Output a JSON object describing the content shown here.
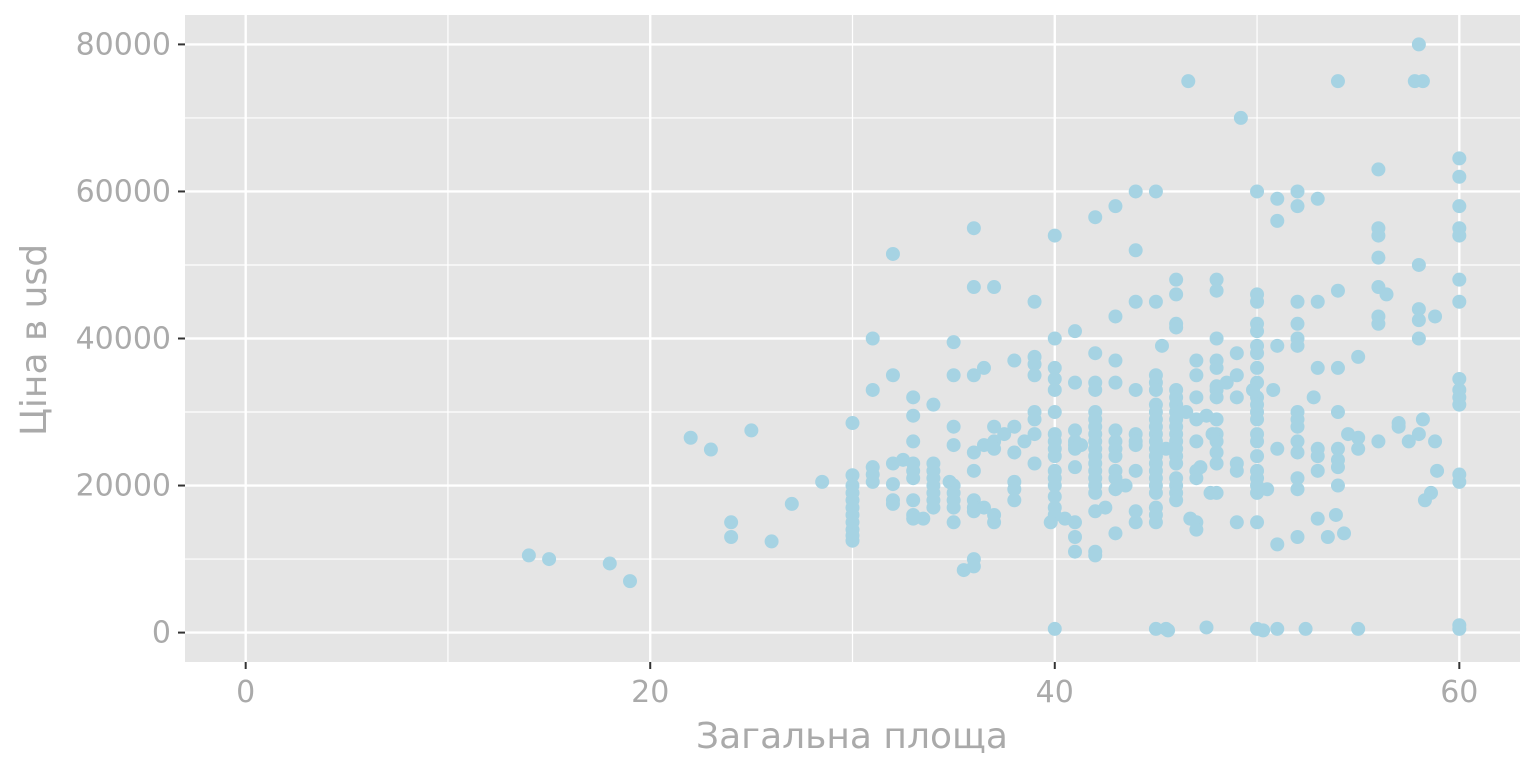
{
  "chart_data": {
    "type": "scatter",
    "title": "",
    "xlabel": "Загальна площа",
    "ylabel": "Ціна в usd",
    "xlim": [
      -3,
      63
    ],
    "ylim": [
      -4000,
      84000
    ],
    "x_ticks": [
      0,
      20,
      40,
      60
    ],
    "x_tick_labels": [
      "0",
      "20",
      "40",
      "60"
    ],
    "y_ticks": [
      0,
      20000,
      40000,
      60000,
      80000
    ],
    "y_tick_labels": [
      "0",
      "20000",
      "40000",
      "60000",
      "80000"
    ],
    "grid": true,
    "legend": "none",
    "colors": {
      "panel": "#e5e5e5",
      "grid": "#ffffff",
      "point": "#a6d3e3",
      "text": "#aaaaaa"
    },
    "points": [
      [
        14,
        10500
      ],
      [
        15,
        10000
      ],
      [
        18,
        9400
      ],
      [
        19,
        7000
      ],
      [
        22,
        26500
      ],
      [
        23,
        24900
      ],
      [
        24,
        15000
      ],
      [
        24,
        13000
      ],
      [
        25,
        27500
      ],
      [
        26,
        12400
      ],
      [
        27,
        17500
      ],
      [
        28.5,
        20500
      ],
      [
        30,
        28500
      ],
      [
        30,
        21400
      ],
      [
        30,
        20000
      ],
      [
        30,
        19000
      ],
      [
        30,
        18000
      ],
      [
        30,
        17000
      ],
      [
        30,
        16000
      ],
      [
        30,
        15000
      ],
      [
        30,
        14000
      ],
      [
        30,
        13200
      ],
      [
        30,
        12500
      ],
      [
        31,
        40000
      ],
      [
        31,
        33000
      ],
      [
        31,
        22500
      ],
      [
        31,
        21500
      ],
      [
        31,
        20500
      ],
      [
        32,
        51500
      ],
      [
        32,
        35000
      ],
      [
        32,
        23000
      ],
      [
        32,
        20200
      ],
      [
        32,
        18000
      ],
      [
        32,
        17500
      ],
      [
        32.5,
        23500
      ],
      [
        33,
        32000
      ],
      [
        33,
        29500
      ],
      [
        33,
        26000
      ],
      [
        33,
        23000
      ],
      [
        33,
        22000
      ],
      [
        33,
        21000
      ],
      [
        33,
        18000
      ],
      [
        33,
        16000
      ],
      [
        33,
        15500
      ],
      [
        33.5,
        15500
      ],
      [
        34,
        31000
      ],
      [
        34,
        23000
      ],
      [
        34,
        22000
      ],
      [
        34,
        21000
      ],
      [
        34,
        20000
      ],
      [
        34,
        19000
      ],
      [
        34,
        18000
      ],
      [
        34,
        17000
      ],
      [
        34.8,
        20500
      ],
      [
        35,
        39500
      ],
      [
        35,
        35000
      ],
      [
        35,
        28000
      ],
      [
        35,
        25500
      ],
      [
        35,
        20000
      ],
      [
        35,
        19000
      ],
      [
        35,
        18000
      ],
      [
        35,
        17000
      ],
      [
        35,
        15000
      ],
      [
        35.5,
        8500
      ],
      [
        36,
        55000
      ],
      [
        36,
        47000
      ],
      [
        36,
        35000
      ],
      [
        36,
        24500
      ],
      [
        36,
        22000
      ],
      [
        36,
        18000
      ],
      [
        36,
        17000
      ],
      [
        36,
        16500
      ],
      [
        36,
        10000
      ],
      [
        36,
        9000
      ],
      [
        36.5,
        36000
      ],
      [
        36.5,
        25500
      ],
      [
        36.5,
        17000
      ],
      [
        37,
        47000
      ],
      [
        37,
        28000
      ],
      [
        37,
        26000
      ],
      [
        37,
        25000
      ],
      [
        37,
        16000
      ],
      [
        37,
        15000
      ],
      [
        37.5,
        27000
      ],
      [
        38,
        37000
      ],
      [
        38,
        28000
      ],
      [
        38,
        24500
      ],
      [
        38,
        20500
      ],
      [
        38,
        19500
      ],
      [
        38,
        18000
      ],
      [
        38.5,
        26000
      ],
      [
        39,
        45000
      ],
      [
        39,
        37500
      ],
      [
        39,
        36500
      ],
      [
        39,
        35000
      ],
      [
        39,
        30000
      ],
      [
        39,
        29000
      ],
      [
        39,
        27000
      ],
      [
        39,
        23000
      ],
      [
        40,
        54000
      ],
      [
        40,
        40000
      ],
      [
        40,
        36000
      ],
      [
        40,
        34500
      ],
      [
        40,
        33000
      ],
      [
        40,
        30000
      ],
      [
        40,
        27000
      ],
      [
        40,
        26000
      ],
      [
        40,
        25000
      ],
      [
        40,
        24000
      ],
      [
        40,
        22000
      ],
      [
        40,
        21000
      ],
      [
        40,
        20000
      ],
      [
        40,
        18500
      ],
      [
        40,
        17000
      ],
      [
        40,
        16000
      ],
      [
        40,
        500
      ],
      [
        39.8,
        15000
      ],
      [
        40.5,
        15500
      ],
      [
        41,
        41000
      ],
      [
        41,
        34000
      ],
      [
        41,
        27500
      ],
      [
        41,
        26000
      ],
      [
        41,
        25500
      ],
      [
        41,
        25000
      ],
      [
        41,
        22500
      ],
      [
        41,
        15000
      ],
      [
        41,
        13000
      ],
      [
        41,
        11000
      ],
      [
        41.3,
        25500
      ],
      [
        42,
        56500
      ],
      [
        42,
        38000
      ],
      [
        42,
        34000
      ],
      [
        42,
        33000
      ],
      [
        42,
        30000
      ],
      [
        42,
        29000
      ],
      [
        42,
        28000
      ],
      [
        42,
        27000
      ],
      [
        42,
        26000
      ],
      [
        42,
        25000
      ],
      [
        42,
        24000
      ],
      [
        42,
        23000
      ],
      [
        42,
        22000
      ],
      [
        42,
        21000
      ],
      [
        42,
        20000
      ],
      [
        42,
        19000
      ],
      [
        42,
        16500
      ],
      [
        42,
        11000
      ],
      [
        42,
        10500
      ],
      [
        42.5,
        17000
      ],
      [
        43,
        58000
      ],
      [
        43,
        43000
      ],
      [
        43,
        37000
      ],
      [
        43,
        34000
      ],
      [
        43,
        27500
      ],
      [
        43,
        26000
      ],
      [
        43,
        25000
      ],
      [
        43,
        24000
      ],
      [
        43,
        22000
      ],
      [
        43,
        21000
      ],
      [
        43,
        19500
      ],
      [
        43,
        13500
      ],
      [
        43.5,
        20000
      ],
      [
        44,
        60000
      ],
      [
        44,
        52000
      ],
      [
        44,
        45000
      ],
      [
        44,
        33000
      ],
      [
        44,
        27000
      ],
      [
        44,
        26000
      ],
      [
        44,
        25500
      ],
      [
        44,
        22000
      ],
      [
        44,
        16500
      ],
      [
        44,
        15000
      ],
      [
        45,
        60000
      ],
      [
        45,
        45000
      ],
      [
        45,
        35000
      ],
      [
        45,
        34000
      ],
      [
        45,
        33000
      ],
      [
        45,
        31000
      ],
      [
        45,
        30000
      ],
      [
        45,
        29000
      ],
      [
        45,
        28000
      ],
      [
        45,
        27000
      ],
      [
        45,
        26000
      ],
      [
        45,
        25000
      ],
      [
        45,
        24000
      ],
      [
        45,
        23000
      ],
      [
        45,
        22000
      ],
      [
        45,
        21000
      ],
      [
        45,
        20000
      ],
      [
        45,
        19000
      ],
      [
        45,
        17000
      ],
      [
        45,
        16000
      ],
      [
        45,
        15000
      ],
      [
        45,
        500
      ],
      [
        45.3,
        39000
      ],
      [
        45.5,
        25000
      ],
      [
        45.5,
        500
      ],
      [
        45.6,
        300
      ],
      [
        46,
        48000
      ],
      [
        46,
        46000
      ],
      [
        46,
        42000
      ],
      [
        46,
        41500
      ],
      [
        46,
        33000
      ],
      [
        46,
        32000
      ],
      [
        46,
        31000
      ],
      [
        46,
        30000
      ],
      [
        46,
        29000
      ],
      [
        46,
        28000
      ],
      [
        46,
        27000
      ],
      [
        46,
        26000
      ],
      [
        46,
        25000
      ],
      [
        46,
        24000
      ],
      [
        46,
        23000
      ],
      [
        46,
        21000
      ],
      [
        46,
        20000
      ],
      [
        46,
        19000
      ],
      [
        46,
        18000
      ],
      [
        46.5,
        30000
      ],
      [
        46.6,
        75000
      ],
      [
        46.7,
        15500
      ],
      [
        47,
        37000
      ],
      [
        47,
        35000
      ],
      [
        47,
        32000
      ],
      [
        47,
        29000
      ],
      [
        47,
        26000
      ],
      [
        47,
        22000
      ],
      [
        47,
        21000
      ],
      [
        47,
        15000
      ],
      [
        47,
        14000
      ],
      [
        47.2,
        22500
      ],
      [
        47.5,
        29500
      ],
      [
        47.5,
        700
      ],
      [
        47.7,
        19000
      ],
      [
        48,
        48000
      ],
      [
        48,
        46500
      ],
      [
        48,
        40000
      ],
      [
        48,
        37000
      ],
      [
        48,
        36000
      ],
      [
        48,
        33500
      ],
      [
        48,
        33000
      ],
      [
        48,
        32000
      ],
      [
        48,
        29000
      ],
      [
        48,
        27000
      ],
      [
        48,
        26000
      ],
      [
        48,
        24500
      ],
      [
        48,
        23000
      ],
      [
        48,
        19000
      ],
      [
        47.8,
        27000
      ],
      [
        48.5,
        34000
      ],
      [
        49,
        38000
      ],
      [
        49,
        35000
      ],
      [
        49,
        32000
      ],
      [
        49,
        23000
      ],
      [
        49,
        22000
      ],
      [
        49,
        15000
      ],
      [
        49.2,
        70000
      ],
      [
        49.8,
        33000
      ],
      [
        50,
        60000
      ],
      [
        50,
        46000
      ],
      [
        50,
        45000
      ],
      [
        50,
        42000
      ],
      [
        50,
        41000
      ],
      [
        50,
        39000
      ],
      [
        50,
        38000
      ],
      [
        50,
        36000
      ],
      [
        50,
        34000
      ],
      [
        50,
        32000
      ],
      [
        50,
        31000
      ],
      [
        50,
        30000
      ],
      [
        50,
        29000
      ],
      [
        50,
        27000
      ],
      [
        50,
        26000
      ],
      [
        50,
        24000
      ],
      [
        50,
        22000
      ],
      [
        50,
        21000
      ],
      [
        50,
        20000
      ],
      [
        50,
        19000
      ],
      [
        50,
        15000
      ],
      [
        50,
        500
      ],
      [
        50.3,
        300
      ],
      [
        50.5,
        19500
      ],
      [
        50.8,
        33000
      ],
      [
        51,
        59000
      ],
      [
        51,
        56000
      ],
      [
        51,
        39000
      ],
      [
        51,
        25000
      ],
      [
        51,
        12000
      ],
      [
        51,
        500
      ],
      [
        52,
        60000
      ],
      [
        52,
        58000
      ],
      [
        52,
        45000
      ],
      [
        52,
        42000
      ],
      [
        52,
        40000
      ],
      [
        52,
        39000
      ],
      [
        52,
        30000
      ],
      [
        52,
        29000
      ],
      [
        52,
        28000
      ],
      [
        52,
        26000
      ],
      [
        52,
        24500
      ],
      [
        52,
        21000
      ],
      [
        52,
        19500
      ],
      [
        52,
        13000
      ],
      [
        52.4,
        500
      ],
      [
        52.8,
        32000
      ],
      [
        53,
        59000
      ],
      [
        53,
        45000
      ],
      [
        53,
        36000
      ],
      [
        53,
        25000
      ],
      [
        53,
        24000
      ],
      [
        53,
        22000
      ],
      [
        53,
        15500
      ],
      [
        53.5,
        13000
      ],
      [
        54,
        75000
      ],
      [
        54,
        46500
      ],
      [
        54,
        36000
      ],
      [
        54,
        30000
      ],
      [
        54,
        25000
      ],
      [
        54,
        23500
      ],
      [
        54,
        22500
      ],
      [
        54,
        20000
      ],
      [
        53.9,
        16000
      ],
      [
        54.3,
        13500
      ],
      [
        54.5,
        27000
      ],
      [
        55,
        37500
      ],
      [
        55,
        26500
      ],
      [
        55,
        25000
      ],
      [
        55,
        500
      ],
      [
        56,
        63000
      ],
      [
        56,
        55000
      ],
      [
        56,
        54000
      ],
      [
        56,
        51000
      ],
      [
        56,
        47000
      ],
      [
        56,
        43000
      ],
      [
        56,
        42000
      ],
      [
        56,
        26000
      ],
      [
        56.4,
        46000
      ],
      [
        57,
        28000
      ],
      [
        57,
        28500
      ],
      [
        57.5,
        26000
      ],
      [
        57.8,
        75000
      ],
      [
        58,
        80000
      ],
      [
        58,
        50000
      ],
      [
        58,
        44000
      ],
      [
        58,
        42500
      ],
      [
        58,
        40000
      ],
      [
        58,
        27000
      ],
      [
        58.2,
        29000
      ],
      [
        58.2,
        75000
      ],
      [
        58.3,
        18000
      ],
      [
        58.6,
        19000
      ],
      [
        58.8,
        43000
      ],
      [
        58.8,
        26000
      ],
      [
        58.9,
        22000
      ],
      [
        60,
        64500
      ],
      [
        60,
        62000
      ],
      [
        60,
        58000
      ],
      [
        60,
        55000
      ],
      [
        60,
        54000
      ],
      [
        60,
        48000
      ],
      [
        60,
        45000
      ],
      [
        60,
        34500
      ],
      [
        60,
        33000
      ],
      [
        60,
        32000
      ],
      [
        60,
        31000
      ],
      [
        60,
        21500
      ],
      [
        60,
        20500
      ],
      [
        60,
        1000
      ],
      [
        60,
        500
      ]
    ]
  }
}
